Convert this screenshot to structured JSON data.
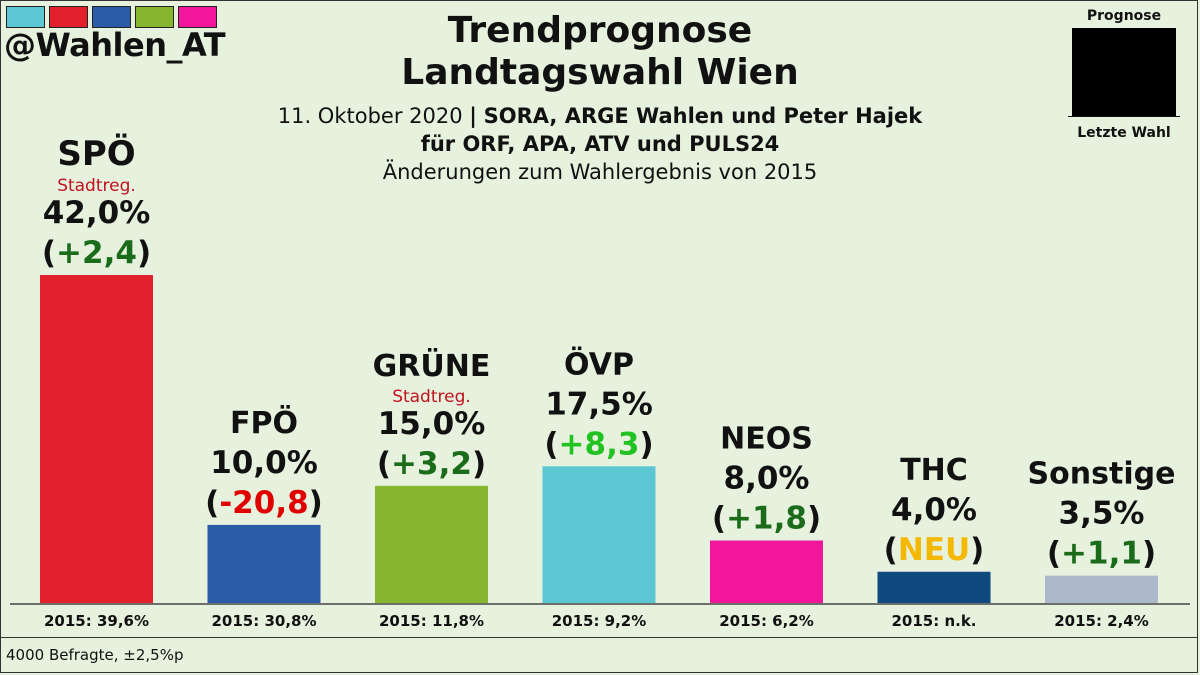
{
  "header": {
    "handle": "@Wahlen_AT",
    "title_line1": "Trendprognose",
    "title_line2": "Landtagswahl Wien",
    "subtitle_date": "11. Oktober 2020",
    "subtitle_sep": "|",
    "subtitle_source": "SORA, ARGE Wahlen und Peter Hajek",
    "subtitle_line2": "für ORF, APA, ATV und PULS24",
    "subtitle_line3": "Änderungen zum Wahlergebnis von 2015",
    "color_swatches": [
      "#5cc6d3",
      "#e3212d",
      "#2a5ca8",
      "#86b52e",
      "#f2169c"
    ]
  },
  "legend": {
    "top_label": "Prognose",
    "bottom_label": "Letzte Wahl"
  },
  "footer": {
    "text": "4000 Befragte,  ±2,5%p"
  },
  "chart_data": {
    "type": "bar",
    "title": "Trendprognose Landtagswahl Wien",
    "categories": [
      "SPÖ",
      "FPÖ",
      "GRÜNE",
      "ÖVP",
      "NEOS",
      "THC",
      "Sonstige"
    ],
    "series": [
      {
        "name": "Prognose",
        "values": [
          42.0,
          10.0,
          15.0,
          17.5,
          8.0,
          4.0,
          3.5
        ]
      }
    ],
    "labels": {
      "percent": [
        "42,0%",
        "10,0%",
        "15,0%",
        "17,5%",
        "8,0%",
        "4,0%",
        "3,5%"
      ],
      "change": [
        "+2,4",
        "-20,8",
        "+3,2",
        "+8,3",
        "+1,8",
        "NEU",
        "+1,1"
      ],
      "previous": [
        "2015: 39,6%",
        "2015: 30,8%",
        "2015: 11,8%",
        "2015: 9,2%",
        "2015: 6,2%",
        "2015: n.k.",
        "2015: 2,4%"
      ],
      "note": [
        "Stadtreg.",
        "",
        "Stadtreg.",
        "",
        "",
        "",
        ""
      ]
    },
    "colors": {
      "bars": [
        "#e3212d",
        "#2a5ca8",
        "#86b52e",
        "#5cc6d3",
        "#f2169c",
        "#0f4a7f",
        "#adb9cb"
      ],
      "change": [
        "#1a6b1a",
        "#e00000",
        "#1a6b1a",
        "#22c222",
        "#1a6b1a",
        "#f5b800",
        "#1a6b1a"
      ]
    },
    "ylim": [
      0,
      42.0
    ],
    "grid": false
  }
}
